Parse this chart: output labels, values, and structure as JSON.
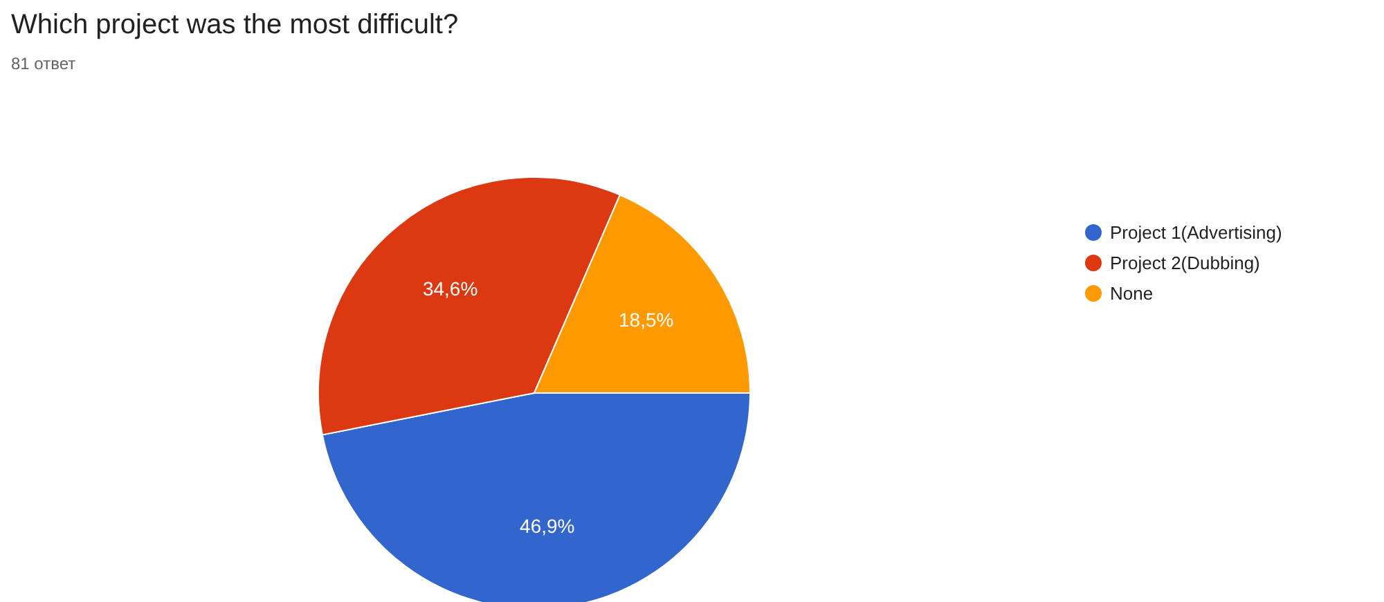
{
  "chart_data": {
    "type": "pie",
    "title": "Which project was the most difficult?",
    "subtitle": "81 ответ",
    "categories": [
      "Project 1(Advertising)",
      "Project 2(Dubbing)",
      "None"
    ],
    "values": [
      46.9,
      34.6,
      18.5
    ],
    "colors": [
      "#3366cc",
      "#dc3912",
      "#ff9900"
    ],
    "value_labels": [
      "46,9%",
      "34,6%",
      "18,5%"
    ],
    "legend": "right"
  }
}
